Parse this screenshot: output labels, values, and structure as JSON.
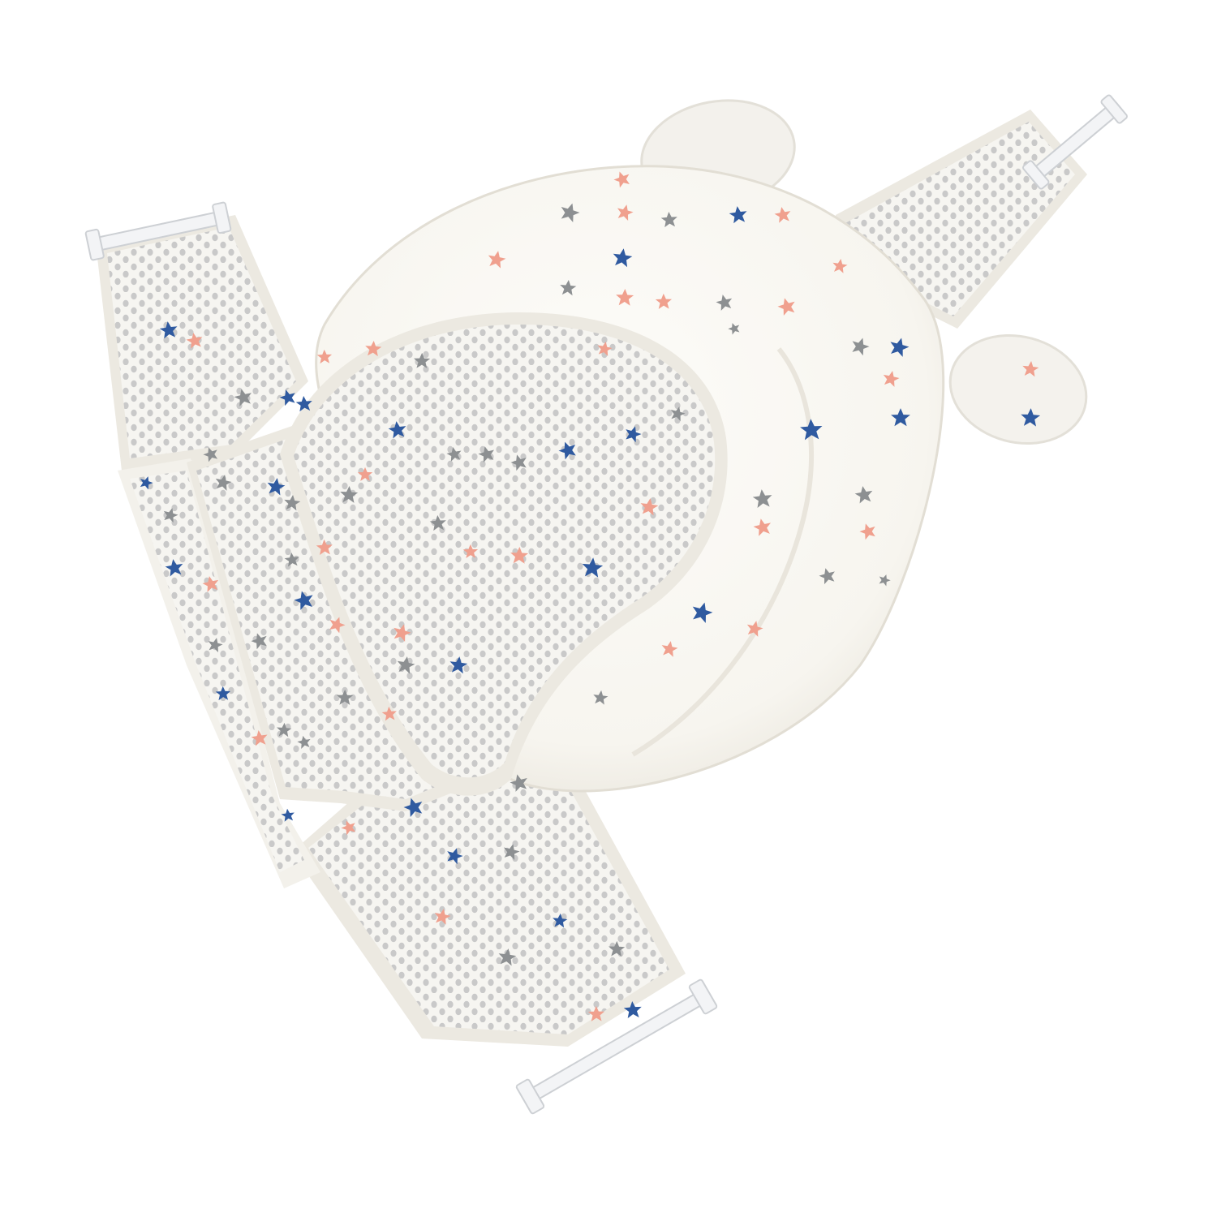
{
  "image": {
    "subject": "baby-bath-seat-support-net",
    "background_color": "#ffffff",
    "colors": {
      "fabric": "#fbfaf6",
      "fabric_shadow": "#e7e4dc",
      "mesh": "#f6f5f1",
      "mesh_hole": "#c9c9c9",
      "mesh_border": "#ece9e1",
      "star_pink": "#f0a08e",
      "star_blue": "#2f5aa0",
      "star_gray": "#8d9092",
      "clip": "#f3f4f6",
      "clip_edge": "#cdd0d4"
    },
    "star_icon": "star-icon",
    "clip_icon": "hook-clip-icon"
  }
}
